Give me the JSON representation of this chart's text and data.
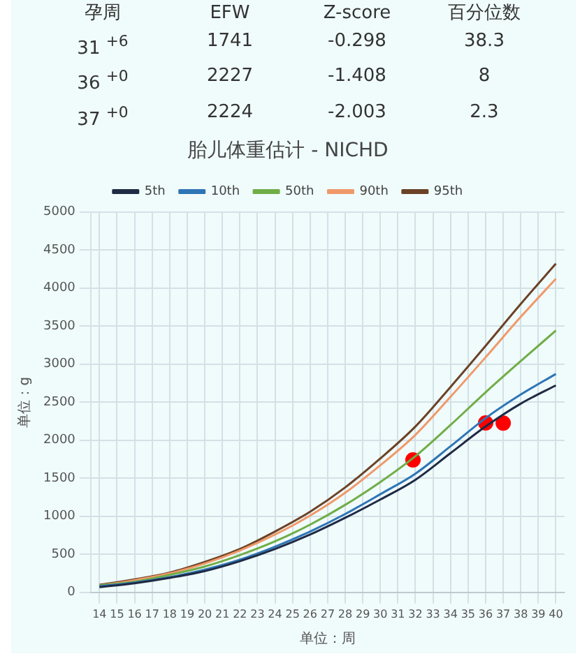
{
  "chart_data": [
    {
      "type": "other",
      "annotations": [
        "孕周",
        "EFW",
        "Z-score",
        "百分位数",
        "31 $^{+6}$",
        "1741",
        "-0.298",
        "38.3",
        "36 $^{+0}$",
        "2227",
        "-1.408",
        "8",
        "37 $^{+0}$",
        "2224",
        "-2.003",
        "2.3"
      ]
    },
    {
      "type": "line",
      "title": "胎儿体重估计 - NICHD",
      "xlabel": "单位：周",
      "ylabel": "单位：g",
      "x": [
        14,
        16,
        18,
        20,
        22,
        24,
        26,
        28,
        30,
        32,
        34,
        36,
        38,
        40
      ],
      "xlim": [
        13.5,
        40.5
      ],
      "xticks": [
        14,
        15,
        16,
        17,
        18,
        19,
        20,
        21,
        22,
        23,
        24,
        25,
        26,
        27,
        28,
        29,
        30,
        31,
        32,
        33,
        34,
        35,
        36,
        37,
        38,
        39,
        40
      ],
      "ylim": [
        0,
        5000
      ],
      "yticks": [
        0,
        500,
        1000,
        1500,
        2000,
        2500,
        3000,
        3500,
        4000,
        4500,
        5000
      ],
      "grid": true,
      "legend": "top",
      "marker": "none",
      "line_style": "solid",
      "series": [
        {
          "name": "5th",
          "color": "#1f2a44",
          "values": [
            70,
            120,
            190,
            280,
            410,
            570,
            760,
            980,
            1220,
            1480,
            1830,
            2180,
            2480,
            2720
          ]
        },
        {
          "name": "10th",
          "color": "#2e75b6",
          "values": [
            80,
            130,
            200,
            300,
            430,
            600,
            800,
            1030,
            1290,
            1560,
            1920,
            2290,
            2600,
            2870
          ]
        },
        {
          "name": "50th",
          "color": "#70ad47",
          "values": [
            90,
            140,
            230,
            340,
            490,
            670,
            890,
            1150,
            1450,
            1790,
            2200,
            2630,
            3040,
            3440
          ]
        },
        {
          "name": "90th",
          "color": "#f0996a",
          "values": [
            90,
            160,
            250,
            380,
            550,
            760,
            1010,
            1310,
            1670,
            2070,
            2570,
            3090,
            3620,
            4120
          ]
        },
        {
          "name": "95th",
          "color": "#6b4226",
          "values": [
            100,
            170,
            260,
            400,
            570,
            800,
            1060,
            1380,
            1760,
            2180,
            2700,
            3240,
            3790,
            4320
          ]
        },
        {
          "type": "scatter",
          "marker": "circle",
          "color": "#ff0000",
          "x": [
            31.86,
            36,
            37
          ],
          "values": [
            1741,
            2227,
            2224
          ]
        }
      ]
    }
  ]
}
